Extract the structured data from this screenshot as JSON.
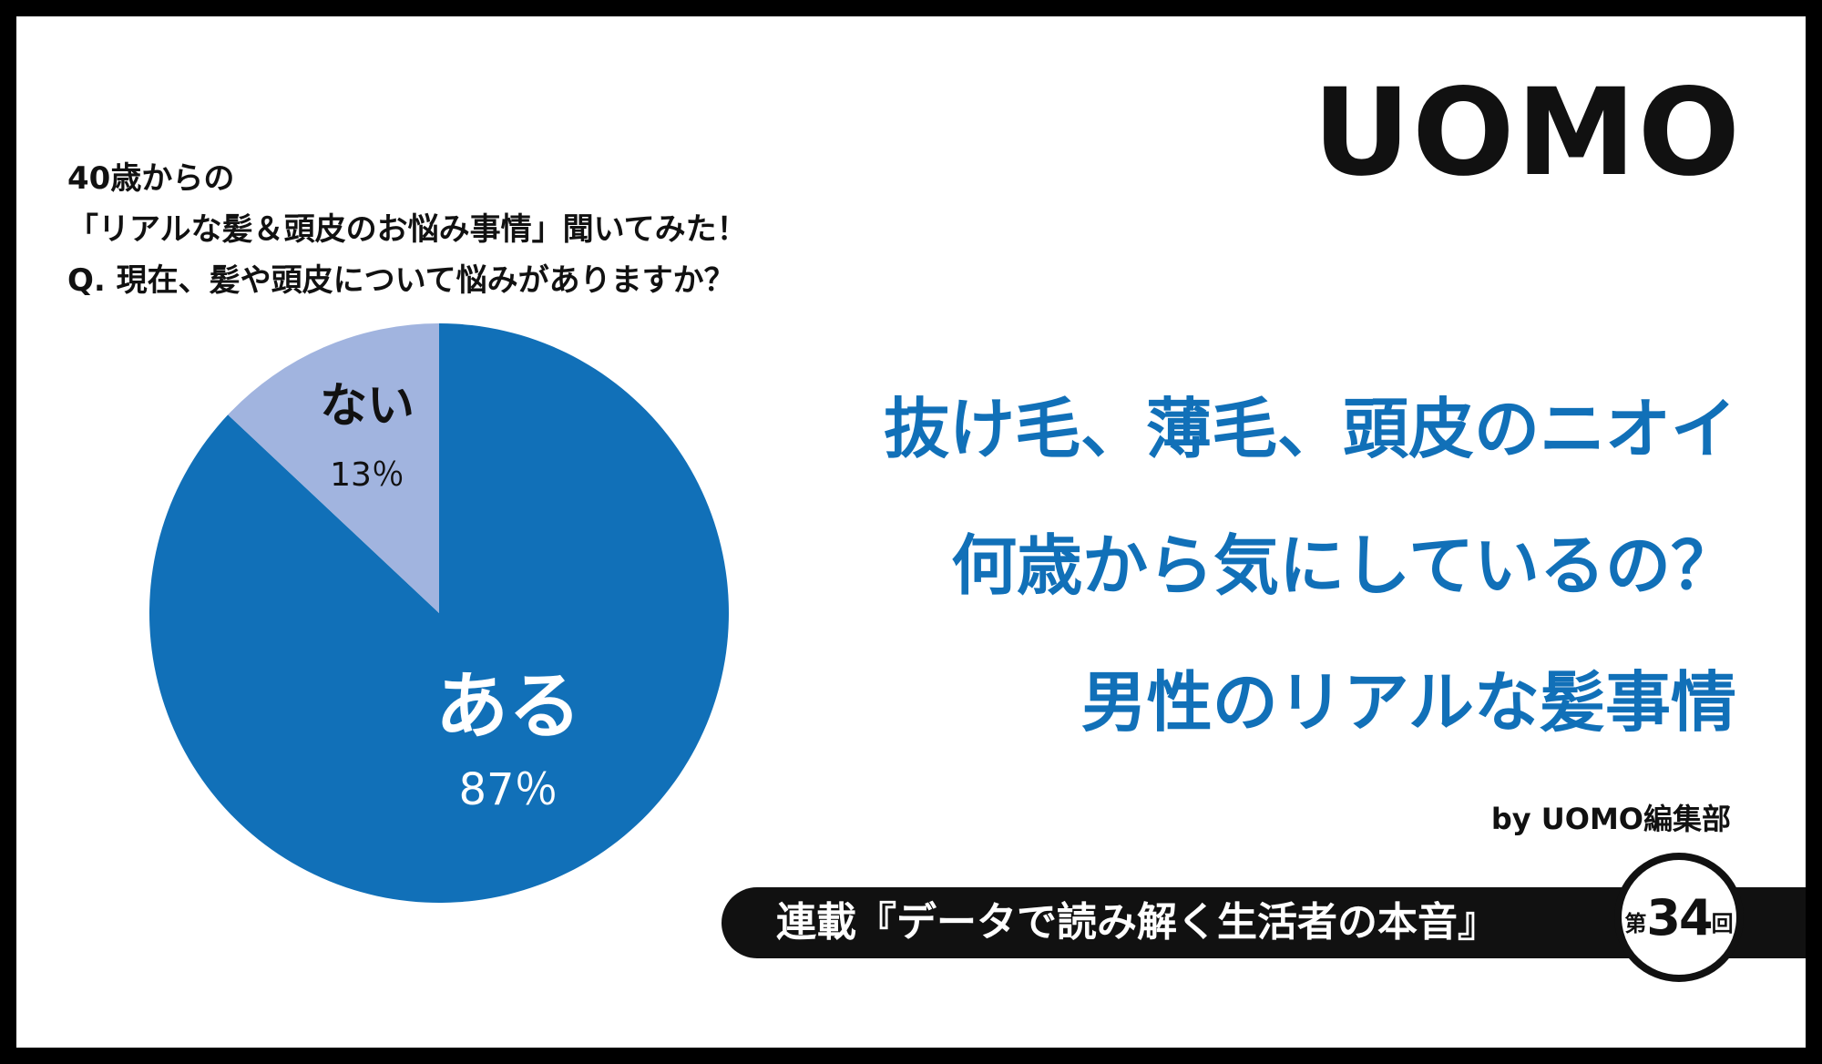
{
  "question": {
    "line1": "40歳からの",
    "line2": "「リアルな髪＆頭皮のお悩み事情」聞いてみた！",
    "line3": "Q. 現在、髪や頭皮について悩みがありますか？"
  },
  "logo": "UOMO",
  "headline": {
    "line1": "抜け毛、薄毛、頭皮のニオイ",
    "line2": "何歳から気にしているの？",
    "line3": "男性のリアルな髪事情"
  },
  "byline": "by UOMO編集部",
  "banner": {
    "text": "連載『データで読み解く生活者の本音』",
    "issue_prefix": "第",
    "issue_number": "34",
    "issue_suffix": "回"
  },
  "colors": {
    "accent": "#1170b8",
    "slice_yes": "#1170b8",
    "slice_no": "#a1b4df",
    "text_dark": "#111111"
  },
  "chart_data": {
    "type": "pie",
    "slices": [
      {
        "label": "ある",
        "value": 87,
        "value_label": "87％",
        "color": "#1170b8"
      },
      {
        "label": "ない",
        "value": 13,
        "value_label": "13％",
        "color": "#a1b4df"
      }
    ]
  }
}
